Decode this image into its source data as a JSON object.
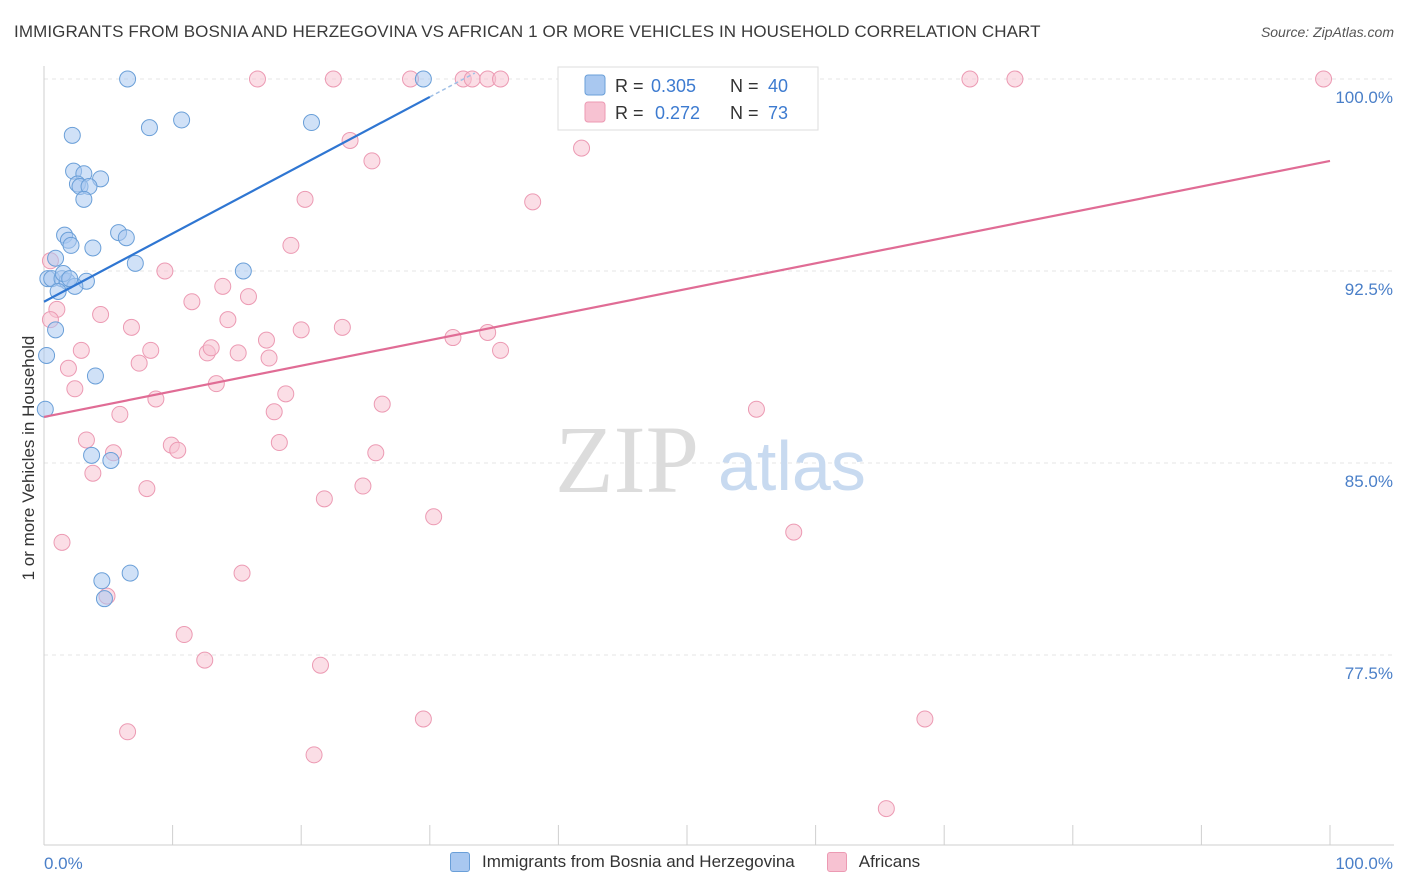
{
  "header": {
    "title": "IMMIGRANTS FROM BOSNIA AND HERZEGOVINA VS AFRICAN 1 OR MORE VEHICLES IN HOUSEHOLD CORRELATION CHART",
    "source": "Source: ZipAtlas.com"
  },
  "watermark": {
    "zip": "ZIP",
    "atlas": "atlas"
  },
  "legend_box": {
    "rows": [
      {
        "r_label": "R = ",
        "r_value": "0.305",
        "n_label": "N = ",
        "n_value": "40"
      },
      {
        "r_label": "R = ",
        "r_value": "0.272",
        "n_label": "N = ",
        "n_value": "73"
      }
    ]
  },
  "chart_data": {
    "type": "scatter",
    "title": "IMMIGRANTS FROM BOSNIA AND HERZEGOVINA VS AFRICAN 1 OR MORE VEHICLES IN HOUSEHOLD CORRELATION CHART",
    "ylabel": "1 or more Vehicles in Household",
    "xlabel": "",
    "xlim": [
      0,
      100
    ],
    "ylim": [
      70.5,
      101.3
    ],
    "x_tick_labels": [
      "0.0%",
      "100.0%"
    ],
    "y_ticks": [
      100.0,
      92.5,
      85.0,
      77.5
    ],
    "y_tick_labels": [
      "100.0%",
      "92.5%",
      "85.0%",
      "77.5%"
    ],
    "grid": true,
    "legend_placement": "bottom-center",
    "colors": {
      "series1_fill": "#a9c8f0",
      "series1_stroke": "#6a9fd8",
      "series1_line": "#2f76d2",
      "series2_fill": "#f7c2d2",
      "series2_stroke": "#ec9ab3",
      "series2_line": "#e06c95",
      "axis_text": "#4a7fc8"
    },
    "series": [
      {
        "name": "Immigrants from Bosnia and Herzegovina",
        "r": 0.305,
        "n": 40,
        "trend": {
          "x": [
            0.0,
            30.0
          ],
          "y": [
            91.3,
            99.3
          ]
        },
        "points": [
          {
            "x": 6.5,
            "y": 100.0
          },
          {
            "x": 29.5,
            "y": 100.0
          },
          {
            "x": 8.2,
            "y": 98.1
          },
          {
            "x": 10.7,
            "y": 98.4
          },
          {
            "x": 2.2,
            "y": 97.8
          },
          {
            "x": 20.8,
            "y": 98.3
          },
          {
            "x": 2.3,
            "y": 96.4
          },
          {
            "x": 3.1,
            "y": 96.3
          },
          {
            "x": 4.4,
            "y": 96.1
          },
          {
            "x": 2.6,
            "y": 95.9
          },
          {
            "x": 2.8,
            "y": 95.8
          },
          {
            "x": 3.5,
            "y": 95.8
          },
          {
            "x": 3.1,
            "y": 95.3
          },
          {
            "x": 1.6,
            "y": 93.9
          },
          {
            "x": 1.9,
            "y": 93.7
          },
          {
            "x": 2.1,
            "y": 93.5
          },
          {
            "x": 3.8,
            "y": 93.4
          },
          {
            "x": 5.8,
            "y": 94.0
          },
          {
            "x": 6.4,
            "y": 93.8
          },
          {
            "x": 0.9,
            "y": 93.0
          },
          {
            "x": 7.1,
            "y": 92.8
          },
          {
            "x": 15.5,
            "y": 92.5
          },
          {
            "x": 0.3,
            "y": 92.2
          },
          {
            "x": 0.6,
            "y": 92.2
          },
          {
            "x": 1.4,
            "y": 92.2
          },
          {
            "x": 1.8,
            "y": 92.1
          },
          {
            "x": 3.3,
            "y": 92.1
          },
          {
            "x": 1.1,
            "y": 91.7
          },
          {
            "x": 2.4,
            "y": 91.9
          },
          {
            "x": 0.9,
            "y": 90.2
          },
          {
            "x": 0.2,
            "y": 89.2
          },
          {
            "x": 4.0,
            "y": 88.4
          },
          {
            "x": 0.1,
            "y": 87.1
          },
          {
            "x": 3.7,
            "y": 85.3
          },
          {
            "x": 5.2,
            "y": 85.1
          },
          {
            "x": 4.5,
            "y": 80.4
          },
          {
            "x": 6.7,
            "y": 80.7
          },
          {
            "x": 4.7,
            "y": 79.7
          },
          {
            "x": 1.5,
            "y": 92.4
          },
          {
            "x": 2.0,
            "y": 92.2
          }
        ]
      },
      {
        "name": "Africans",
        "r": 0.272,
        "n": 73,
        "trend": {
          "x": [
            0.0,
            100.0
          ],
          "y": [
            86.8,
            96.8
          ]
        },
        "points": [
          {
            "x": 16.6,
            "y": 100.0
          },
          {
            "x": 22.5,
            "y": 100.0
          },
          {
            "x": 28.5,
            "y": 100.0
          },
          {
            "x": 32.6,
            "y": 100.0
          },
          {
            "x": 33.3,
            "y": 100.0
          },
          {
            "x": 34.5,
            "y": 100.0
          },
          {
            "x": 35.5,
            "y": 100.0
          },
          {
            "x": 54.0,
            "y": 100.0
          },
          {
            "x": 59.0,
            "y": 100.0
          },
          {
            "x": 72.0,
            "y": 100.0
          },
          {
            "x": 75.5,
            "y": 100.0
          },
          {
            "x": 99.5,
            "y": 100.0
          },
          {
            "x": 23.8,
            "y": 97.6
          },
          {
            "x": 25.5,
            "y": 96.8
          },
          {
            "x": 41.8,
            "y": 97.3
          },
          {
            "x": 20.3,
            "y": 95.3
          },
          {
            "x": 38.0,
            "y": 95.2
          },
          {
            "x": 19.2,
            "y": 93.5
          },
          {
            "x": 0.5,
            "y": 92.9
          },
          {
            "x": 9.4,
            "y": 92.5
          },
          {
            "x": 13.9,
            "y": 91.9
          },
          {
            "x": 15.9,
            "y": 91.5
          },
          {
            "x": 11.5,
            "y": 91.3
          },
          {
            "x": 1.0,
            "y": 91.0
          },
          {
            "x": 4.4,
            "y": 90.8
          },
          {
            "x": 14.3,
            "y": 90.6
          },
          {
            "x": 0.5,
            "y": 90.6
          },
          {
            "x": 6.8,
            "y": 90.3
          },
          {
            "x": 20.0,
            "y": 90.2
          },
          {
            "x": 23.2,
            "y": 90.3
          },
          {
            "x": 34.5,
            "y": 90.1
          },
          {
            "x": 31.8,
            "y": 89.9
          },
          {
            "x": 17.3,
            "y": 89.8
          },
          {
            "x": 2.9,
            "y": 89.4
          },
          {
            "x": 8.3,
            "y": 89.4
          },
          {
            "x": 12.7,
            "y": 89.3
          },
          {
            "x": 13.0,
            "y": 89.5
          },
          {
            "x": 15.1,
            "y": 89.3
          },
          {
            "x": 17.5,
            "y": 89.1
          },
          {
            "x": 35.5,
            "y": 89.4
          },
          {
            "x": 7.4,
            "y": 88.9
          },
          {
            "x": 1.9,
            "y": 88.7
          },
          {
            "x": 13.4,
            "y": 88.1
          },
          {
            "x": 2.4,
            "y": 87.9
          },
          {
            "x": 18.8,
            "y": 87.7
          },
          {
            "x": 8.7,
            "y": 87.5
          },
          {
            "x": 26.3,
            "y": 87.3
          },
          {
            "x": 5.9,
            "y": 86.9
          },
          {
            "x": 17.9,
            "y": 87.0
          },
          {
            "x": 55.4,
            "y": 87.1
          },
          {
            "x": 3.3,
            "y": 85.9
          },
          {
            "x": 9.9,
            "y": 85.7
          },
          {
            "x": 10.4,
            "y": 85.5
          },
          {
            "x": 18.3,
            "y": 85.8
          },
          {
            "x": 5.4,
            "y": 85.4
          },
          {
            "x": 25.8,
            "y": 85.4
          },
          {
            "x": 3.8,
            "y": 84.6
          },
          {
            "x": 8.0,
            "y": 84.0
          },
          {
            "x": 24.8,
            "y": 84.1
          },
          {
            "x": 21.8,
            "y": 83.6
          },
          {
            "x": 30.3,
            "y": 82.9
          },
          {
            "x": 58.3,
            "y": 82.3
          },
          {
            "x": 1.4,
            "y": 81.9
          },
          {
            "x": 15.4,
            "y": 80.7
          },
          {
            "x": 4.9,
            "y": 79.8
          },
          {
            "x": 10.9,
            "y": 78.3
          },
          {
            "x": 12.5,
            "y": 77.3
          },
          {
            "x": 21.5,
            "y": 77.1
          },
          {
            "x": 29.5,
            "y": 75.0
          },
          {
            "x": 68.5,
            "y": 75.0
          },
          {
            "x": 6.5,
            "y": 74.5
          },
          {
            "x": 21.0,
            "y": 73.6
          },
          {
            "x": 65.5,
            "y": 71.5
          }
        ]
      }
    ]
  }
}
